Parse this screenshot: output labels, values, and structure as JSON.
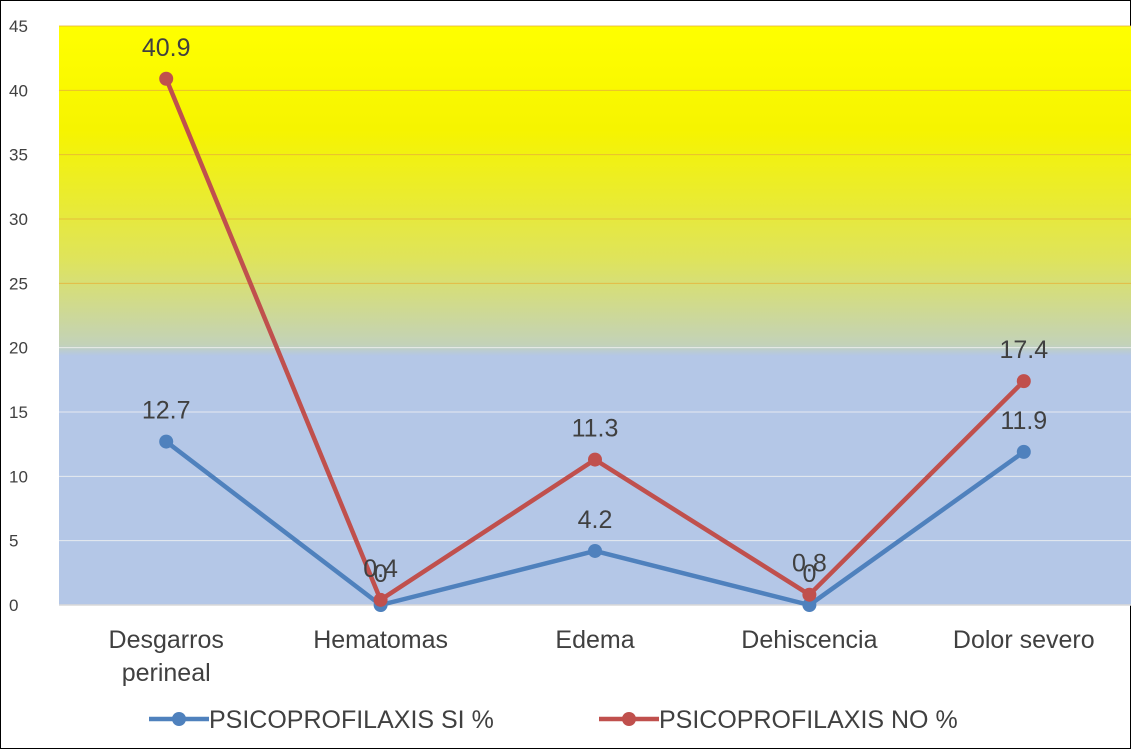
{
  "chart_data": {
    "type": "line",
    "categories": [
      "Desgarros perineal",
      "Hematomas",
      "Edema",
      "Dehiscencia",
      "Dolor severo"
    ],
    "category_lines": [
      [
        "Desgarros",
        "perineal"
      ],
      [
        "Hematomas"
      ],
      [
        "Edema"
      ],
      [
        "Dehiscencia"
      ],
      [
        "Dolor severo"
      ]
    ],
    "series": [
      {
        "name": "PSICOPROFILAXIS SI %",
        "values": [
          12.7,
          0,
          4.2,
          0,
          11.9
        ],
        "labels": [
          "12.7",
          "0",
          "4.2",
          "0",
          "11.9"
        ],
        "color": "#4f81bd"
      },
      {
        "name": "PSICOPROFILAXIS NO %",
        "values": [
          40.9,
          0.4,
          11.3,
          0.8,
          17.4
        ],
        "labels": [
          "40.9",
          "0.4",
          "11.3",
          "0.8",
          "17.4"
        ],
        "color": "#c0504d"
      }
    ],
    "ylim": [
      0,
      45
    ],
    "yticks": [
      0,
      5,
      10,
      15,
      20,
      25,
      30,
      35,
      40,
      45
    ],
    "grid": true,
    "legend": "bottom",
    "background": {
      "top": "#ffff00",
      "bottom": "#b4c7e7"
    }
  }
}
